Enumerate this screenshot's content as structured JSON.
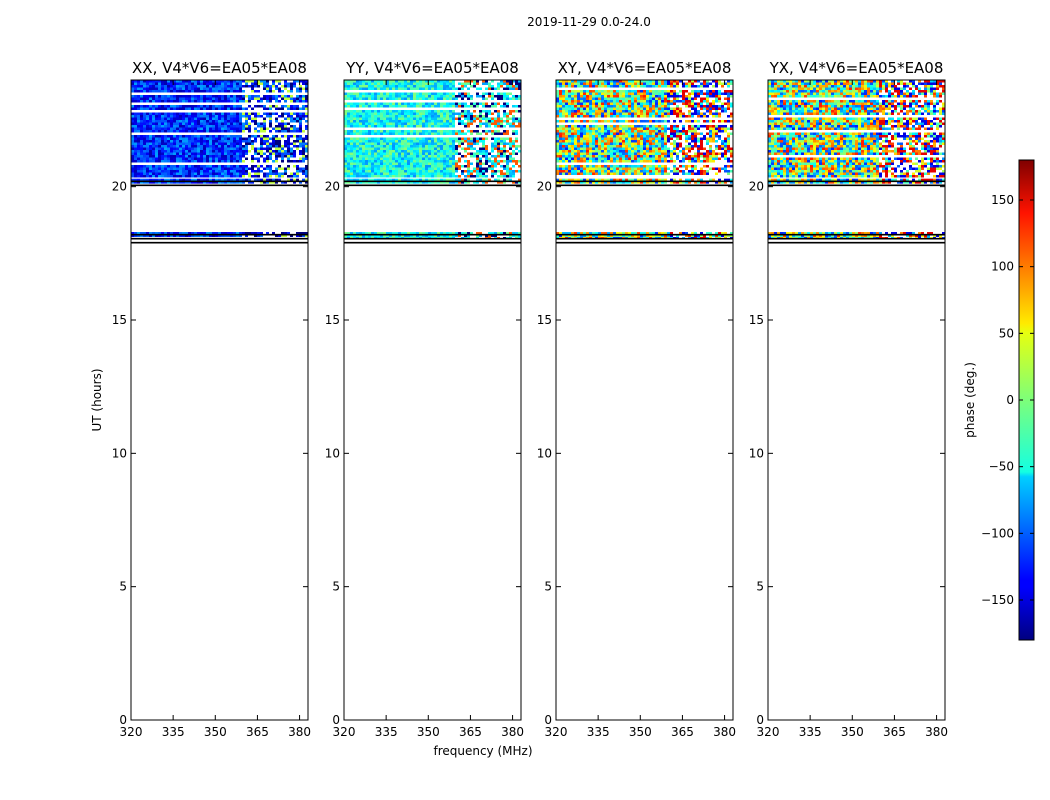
{
  "supertitle": "2019-11-29 0.0-24.0",
  "chart_data": {
    "type": "heatmap",
    "xlabel": "frequency (MHz)",
    "ylabel": "UT (hours)",
    "xlim": [
      320,
      383
    ],
    "ylim": [
      0,
      24
    ],
    "xticks": [
      320,
      335,
      350,
      365,
      380
    ],
    "yticks": [
      0,
      5,
      10,
      15,
      20
    ],
    "data_ut_ranges": [
      [
        18.1,
        18.3
      ],
      [
        20.2,
        20.3
      ],
      [
        20.4,
        24.0
      ]
    ],
    "horizontal_lines_ut": [
      17.9,
      18.05,
      18.2,
      20.05,
      20.2
    ],
    "panels": [
      {
        "title": "XX, V4*V6=EA05*EA08",
        "typical_phase_deg": -120
      },
      {
        "title": "YY, V4*V6=EA05*EA08",
        "typical_phase_deg": -40
      },
      {
        "title": "XY, V4*V6=EA05*EA08",
        "typical_phase_deg": 0
      },
      {
        "title": "YX, V4*V6=EA05*EA08",
        "typical_phase_deg": 0
      }
    ],
    "colorbar": {
      "label": "phase (deg.)",
      "range": [
        -180,
        180
      ],
      "ticks": [
        150,
        100,
        50,
        0,
        -50,
        -100,
        -150
      ],
      "tick_labels": [
        "150",
        "100",
        "50",
        "0",
        "−50",
        "−100",
        "−150"
      ],
      "colormap": "jet"
    },
    "grid": false
  }
}
